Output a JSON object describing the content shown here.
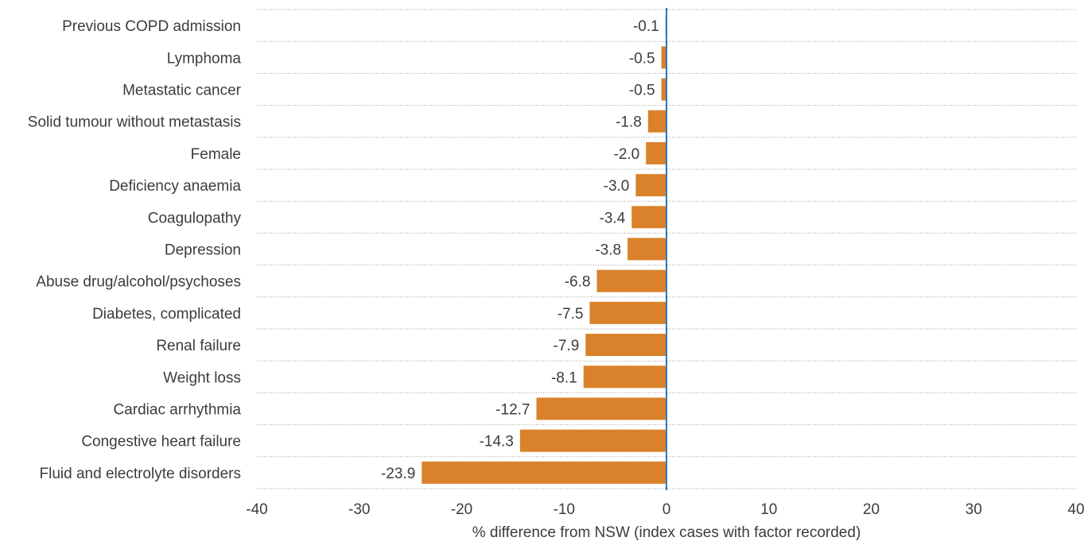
{
  "chart_data": {
    "type": "bar",
    "orientation": "horizontal",
    "categories": [
      "Previous COPD admission",
      "Lymphoma",
      "Metastatic cancer",
      "Solid tumour without metastasis",
      "Female",
      "Deficiency anaemia",
      "Coagulopathy",
      "Depression",
      "Abuse drug/alcohol/psychoses",
      "Diabetes, complicated",
      "Renal failure",
      "Weight loss",
      "Cardiac arrhythmia",
      "Congestive heart failure ",
      "Fluid and electrolyte disorders"
    ],
    "values": [
      -0.1,
      -0.5,
      -0.5,
      -1.8,
      -2.0,
      -3.0,
      -3.4,
      -3.8,
      -6.8,
      -7.5,
      -7.9,
      -8.1,
      -12.7,
      -14.3,
      -23.9
    ],
    "value_labels": [
      "-0.1",
      "-0.5",
      "-0.5",
      "-1.8",
      "-2.0",
      "-3.0",
      "-3.4",
      "-3.8",
      "-6.8",
      "-7.5",
      "-7.9",
      "-8.1",
      "-12.7",
      "-14.3",
      "-23.9"
    ],
    "title": "",
    "xlabel": "% difference from NSW (index cases with factor recorded)",
    "ylabel": "",
    "xlim": [
      -40,
      40
    ],
    "xticks": [
      -40,
      -30,
      -20,
      -10,
      0,
      10,
      20,
      30,
      40
    ],
    "xtick_labels": [
      "-40",
      "-30",
      "-20",
      "-10",
      "0",
      "10",
      "20",
      "30",
      "40"
    ],
    "grid": "horizontal dotted separators",
    "legend": "none",
    "colors": {
      "bar": "#d9822b",
      "zero_line": "#2a7bbf",
      "grid": "#9a9a9a",
      "text": "#3c3c3c"
    }
  }
}
